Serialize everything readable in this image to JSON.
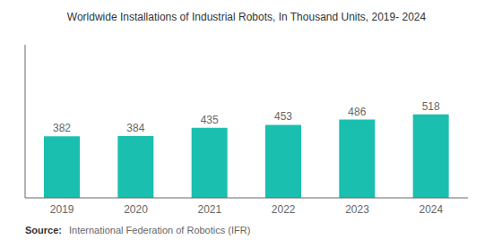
{
  "chart_data": {
    "type": "bar",
    "title": "Worldwide Installations of Industrial Robots, In Thousand Units, 2019- 2024",
    "categories": [
      "2019",
      "2020",
      "2021",
      "2022",
      "2023",
      "2024"
    ],
    "values": [
      382,
      384,
      435,
      453,
      486,
      518
    ],
    "color": "#1ABFB0",
    "ylim": [
      0,
      950
    ],
    "grid": false,
    "data_labels": true,
    "tick_labels": "x",
    "annotations": [
      "Source:",
      "International Federation of Robotics (IFR)"
    ]
  }
}
